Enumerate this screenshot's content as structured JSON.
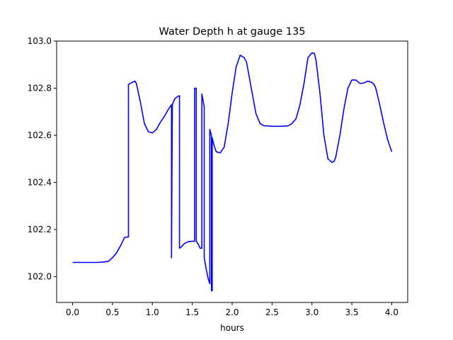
{
  "chart_data": {
    "type": "line",
    "title": "Water Depth h at gauge 135",
    "xlabel": "hours",
    "ylabel": "",
    "xlim": [
      -0.2,
      4.2
    ],
    "ylim": [
      101.89,
      103.0
    ],
    "x_ticks": [
      0.0,
      0.5,
      1.0,
      1.5,
      2.0,
      2.5,
      3.0,
      3.5,
      4.0
    ],
    "x_tick_labels": [
      "0.0",
      "0.5",
      "1.0",
      "1.5",
      "2.0",
      "2.5",
      "3.0",
      "3.5",
      "4.0"
    ],
    "y_ticks": [
      102.0,
      102.2,
      102.4,
      102.6,
      102.8,
      103.0
    ],
    "y_tick_labels": [
      "102.0",
      "102.2",
      "102.4",
      "102.6",
      "102.8",
      "103.0"
    ],
    "grid": false,
    "legend": "none",
    "series": [
      {
        "color": "#0000ff",
        "x": [
          0.0,
          0.1,
          0.2,
          0.3,
          0.4,
          0.45,
          0.5,
          0.55,
          0.6,
          0.65,
          0.68,
          0.7,
          0.7,
          0.72,
          0.75,
          0.78,
          0.8,
          0.85,
          0.9,
          0.95,
          1.0,
          1.05,
          1.1,
          1.15,
          1.2,
          1.24,
          1.24,
          1.25,
          1.28,
          1.32,
          1.34,
          1.34,
          1.36,
          1.4,
          1.45,
          1.5,
          1.53,
          1.53,
          1.55,
          1.55,
          1.57,
          1.6,
          1.62,
          1.62,
          1.64,
          1.65,
          1.65,
          1.67,
          1.7,
          1.72,
          1.72,
          1.74,
          1.74,
          1.75,
          1.75,
          1.77,
          1.8,
          1.85,
          1.9,
          1.95,
          2.0,
          2.05,
          2.1,
          2.15,
          2.18,
          2.2,
          2.25,
          2.3,
          2.35,
          2.4,
          2.45,
          2.5,
          2.6,
          2.7,
          2.75,
          2.8,
          2.85,
          2.9,
          2.95,
          3.0,
          3.03,
          3.05,
          3.1,
          3.15,
          3.2,
          3.25,
          3.28,
          3.3,
          3.35,
          3.4,
          3.45,
          3.5,
          3.55,
          3.6,
          3.65,
          3.7,
          3.75,
          3.78,
          3.8,
          3.85,
          3.9,
          3.95,
          4.0
        ],
        "y": [
          102.06,
          102.06,
          102.06,
          102.06,
          102.062,
          102.065,
          102.08,
          102.1,
          102.13,
          102.165,
          102.168,
          102.168,
          102.815,
          102.82,
          102.825,
          102.83,
          102.82,
          102.74,
          102.65,
          102.615,
          102.61,
          102.625,
          102.655,
          102.68,
          102.71,
          102.73,
          102.08,
          102.73,
          102.755,
          102.765,
          102.768,
          102.12,
          102.125,
          102.14,
          102.148,
          102.15,
          102.15,
          102.8,
          102.8,
          102.15,
          102.14,
          102.12,
          102.12,
          102.775,
          102.74,
          102.72,
          102.08,
          102.04,
          101.99,
          101.97,
          102.625,
          102.6,
          101.94,
          101.94,
          102.59,
          102.56,
          102.53,
          102.525,
          102.55,
          102.65,
          102.78,
          102.89,
          102.94,
          102.93,
          102.91,
          102.875,
          102.78,
          102.69,
          102.65,
          102.64,
          102.64,
          102.638,
          102.638,
          102.64,
          102.65,
          102.67,
          102.73,
          102.82,
          102.93,
          102.95,
          102.948,
          102.92,
          102.78,
          102.6,
          102.5,
          102.485,
          102.49,
          102.51,
          102.6,
          102.71,
          102.8,
          102.835,
          102.835,
          102.82,
          102.822,
          102.83,
          102.825,
          102.815,
          102.8,
          102.73,
          102.65,
          102.58,
          102.53
        ]
      }
    ]
  }
}
